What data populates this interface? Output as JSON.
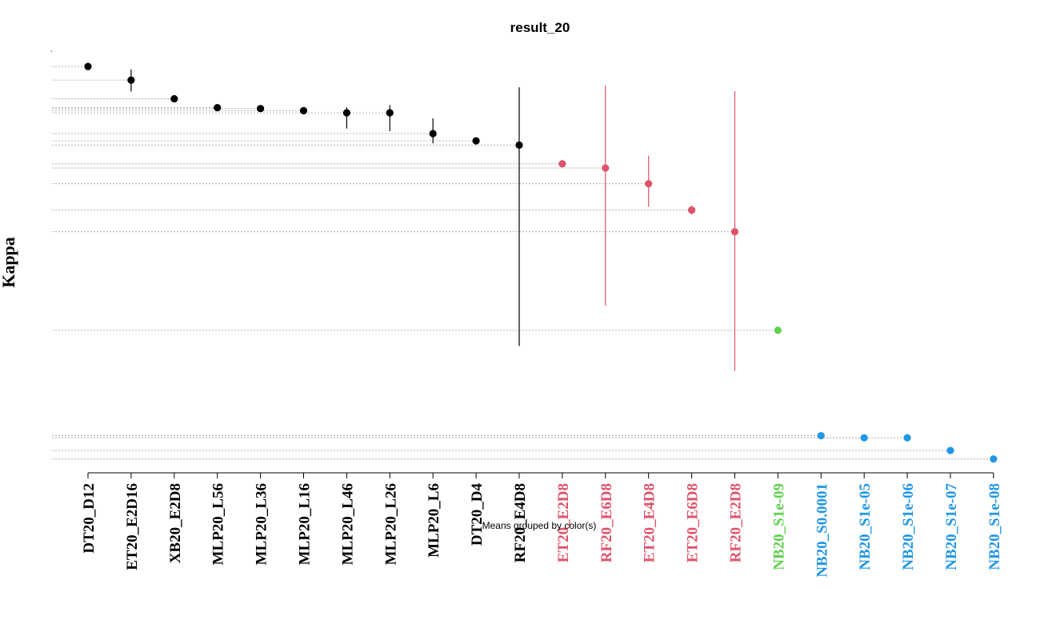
{
  "chart_data": {
    "type": "scatter",
    "title": "result_20",
    "ylabel": "Kappa",
    "xlabel": "",
    "subtitle": "Means grouped by color(s)",
    "ylim": [
      0,
      1
    ],
    "axes": {
      "y_visible": false,
      "x_tick_labels_rotated": true
    },
    "reference_lines": "dotted horizontal line from left edge to each point",
    "groups": [
      {
        "color": "#000000",
        "members": [
          "DT20_D12",
          "ET20_E2D16",
          "XB20_E2D8",
          "MLP20_L56",
          "MLP20_L36",
          "MLP20_L16",
          "MLP20_L46",
          "MLP20_L26",
          "MLP20_L6",
          "DT20_D4",
          "RF20_E4D8"
        ]
      },
      {
        "color": "#DF536B",
        "members": [
          "ET20_E2D8",
          "RF20_E6D8",
          "ET20_E4D8",
          "ET20_E6D8",
          "RF20_E2D8"
        ]
      },
      {
        "color": "#61D04F",
        "members": [
          "NB20_S1e-09"
        ]
      },
      {
        "color": "#2297E6",
        "members": [
          "NB20_S0.0001",
          "NB20_S1e-05",
          "NB20_S1e-06",
          "NB20_S1e-07",
          "NB20_S1e-08"
        ]
      }
    ],
    "categories": [
      "DT20_D12",
      "ET20_E2D16",
      "XB20_E2D8",
      "MLP20_L56",
      "MLP20_L36",
      "MLP20_L16",
      "MLP20_L46",
      "MLP20_L26",
      "MLP20_L6",
      "DT20_D4",
      "RF20_E4D8",
      "ET20_E2D8",
      "RF20_E6D8",
      "ET20_E4D8",
      "ET20_E6D8",
      "RF20_E2D8",
      "NB20_S1e-09",
      "NB20_S0.0001",
      "NB20_S1e-05",
      "NB20_S1e-06",
      "NB20_S1e-07",
      "NB20_S1e-08"
    ],
    "points": [
      {
        "label": "DT20_D12",
        "mean": 0.964,
        "lo": 0.957,
        "hi": 0.97,
        "color": "#000000"
      },
      {
        "label": "ET20_E2D16",
        "mean": 0.932,
        "lo": 0.905,
        "hi": 0.957,
        "color": "#000000"
      },
      {
        "label": "XB20_E2D8",
        "mean": 0.888,
        "lo": 0.883,
        "hi": 0.894,
        "color": "#000000"
      },
      {
        "label": "MLP20_L56",
        "mean": 0.867,
        "lo": 0.86,
        "hi": 0.873,
        "color": "#000000"
      },
      {
        "label": "MLP20_L36",
        "mean": 0.865,
        "lo": 0.859,
        "hi": 0.871,
        "color": "#000000"
      },
      {
        "label": "MLP20_L16",
        "mean": 0.86,
        "lo": 0.854,
        "hi": 0.866,
        "color": "#000000"
      },
      {
        "label": "MLP20_L46",
        "mean": 0.855,
        "lo": 0.818,
        "hi": 0.868,
        "color": "#000000"
      },
      {
        "label": "MLP20_L26",
        "mean": 0.855,
        "lo": 0.812,
        "hi": 0.873,
        "color": "#000000"
      },
      {
        "label": "MLP20_L6",
        "mean": 0.806,
        "lo": 0.783,
        "hi": 0.842,
        "color": "#000000"
      },
      {
        "label": "DT20_D4",
        "mean": 0.789,
        "lo": 0.783,
        "hi": 0.795,
        "color": "#000000"
      },
      {
        "label": "RF20_E4D8",
        "mean": 0.779,
        "lo": 0.306,
        "hi": 0.915,
        "color": "#000000"
      },
      {
        "label": "ET20_E2D8",
        "mean": 0.735,
        "lo": 0.73,
        "hi": 0.74,
        "color": "#DF536B"
      },
      {
        "label": "RF20_E6D8",
        "mean": 0.725,
        "lo": 0.401,
        "hi": 0.919,
        "color": "#DF536B"
      },
      {
        "label": "ET20_E4D8",
        "mean": 0.688,
        "lo": 0.634,
        "hi": 0.754,
        "color": "#DF536B"
      },
      {
        "label": "ET20_E6D8",
        "mean": 0.626,
        "lo": 0.616,
        "hi": 0.637,
        "color": "#DF536B"
      },
      {
        "label": "RF20_E2D8",
        "mean": 0.575,
        "lo": 0.248,
        "hi": 0.906,
        "color": "#DF536B"
      },
      {
        "label": "NB20_S1e-09",
        "mean": 0.343,
        "lo": 0.343,
        "hi": 0.343,
        "color": "#61D04F"
      },
      {
        "label": "NB20_S0.0001",
        "mean": 0.095,
        "lo": 0.095,
        "hi": 0.095,
        "color": "#2297E6"
      },
      {
        "label": "NB20_S1e-05",
        "mean": 0.09,
        "lo": 0.09,
        "hi": 0.09,
        "color": "#2297E6"
      },
      {
        "label": "NB20_S1e-06",
        "mean": 0.09,
        "lo": 0.09,
        "hi": 0.09,
        "color": "#2297E6"
      },
      {
        "label": "NB20_S1e-07",
        "mean": 0.06,
        "lo": 0.06,
        "hi": 0.06,
        "color": "#2297E6"
      },
      {
        "label": "NB20_S1e-08",
        "mean": 0.04,
        "lo": 0.04,
        "hi": 0.04,
        "color": "#2297E6"
      }
    ]
  }
}
